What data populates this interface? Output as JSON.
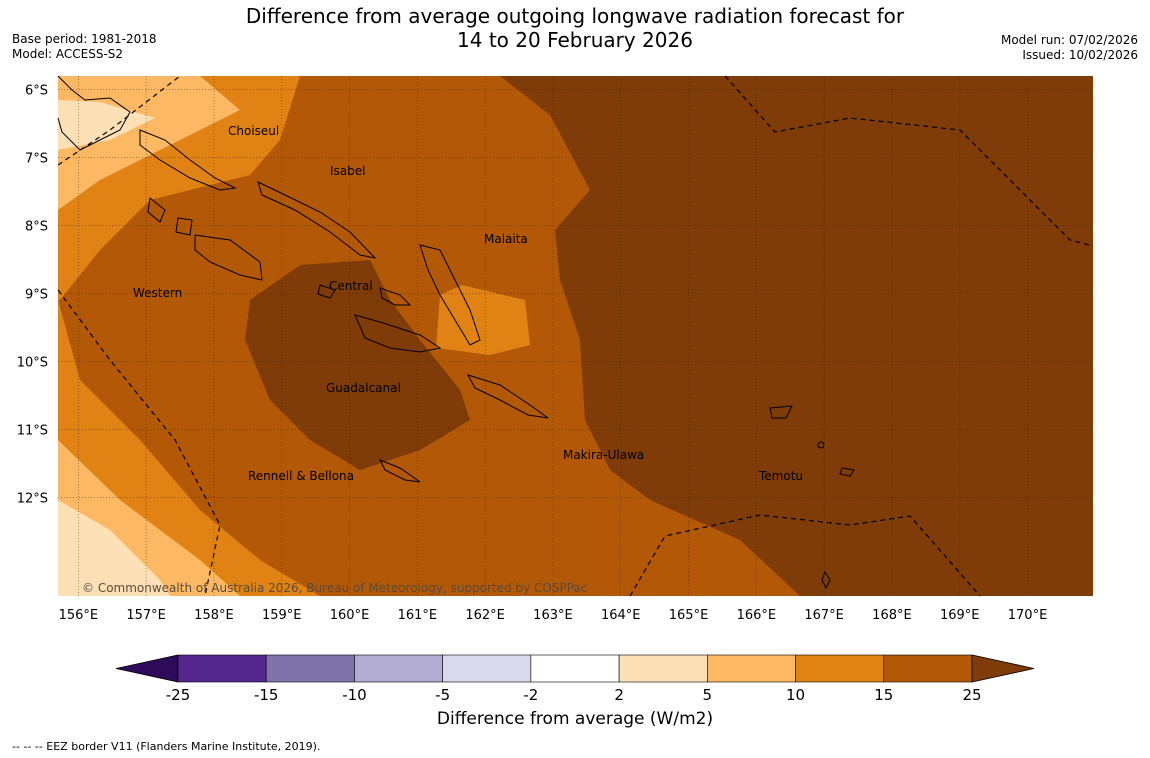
{
  "title_line1": "Difference from average outgoing longwave radiation forecast for",
  "title_line2": "14 to 20 February 2026",
  "base_period": "Base period: 1981-2018",
  "model": "Model: ACCESS-S2",
  "model_run": "Model run: 07/02/2026",
  "issued": "Issued: 10/02/2026",
  "copyright": "© Commonwealth of Australia 2026, Bureau of Meteorology, supported by COSPPac",
  "lat_labels": [
    "6°S",
    "7°S",
    "8°S",
    "9°S",
    "10°S",
    "11°S",
    "12°S"
  ],
  "lon_labels": [
    "156°E",
    "157°E",
    "158°E",
    "159°E",
    "160°E",
    "161°E",
    "162°E",
    "163°E",
    "164°E",
    "165°E",
    "166°E",
    "167°E",
    "168°E",
    "169°E",
    "170°E"
  ],
  "places": [
    {
      "name": "Choiseul"
    },
    {
      "name": "Isabel"
    },
    {
      "name": "Malaita"
    },
    {
      "name": "Western"
    },
    {
      "name": "Central"
    },
    {
      "name": "Guadalcanal"
    },
    {
      "name": "Makira-Ulawa"
    },
    {
      "name": "Rennell & Bellona"
    },
    {
      "name": "Temotu"
    }
  ],
  "colorbar": {
    "ticks": [
      "-25",
      "-15",
      "-10",
      "-5",
      "-2",
      "2",
      "5",
      "10",
      "15",
      "25"
    ],
    "colors": [
      "#2d0a5a",
      "#54278f",
      "#8073ac",
      "#b2abd2",
      "#d8daeb",
      "#ffffff",
      "#fee0b6",
      "#fdb863",
      "#e08214",
      "#b35806",
      "#7f3b08"
    ]
  },
  "colorbar_label": "Difference from average (W/m2)",
  "footnote": "--  --  -- EEZ border V11 (Flanders Marine Institute, 2019)."
}
